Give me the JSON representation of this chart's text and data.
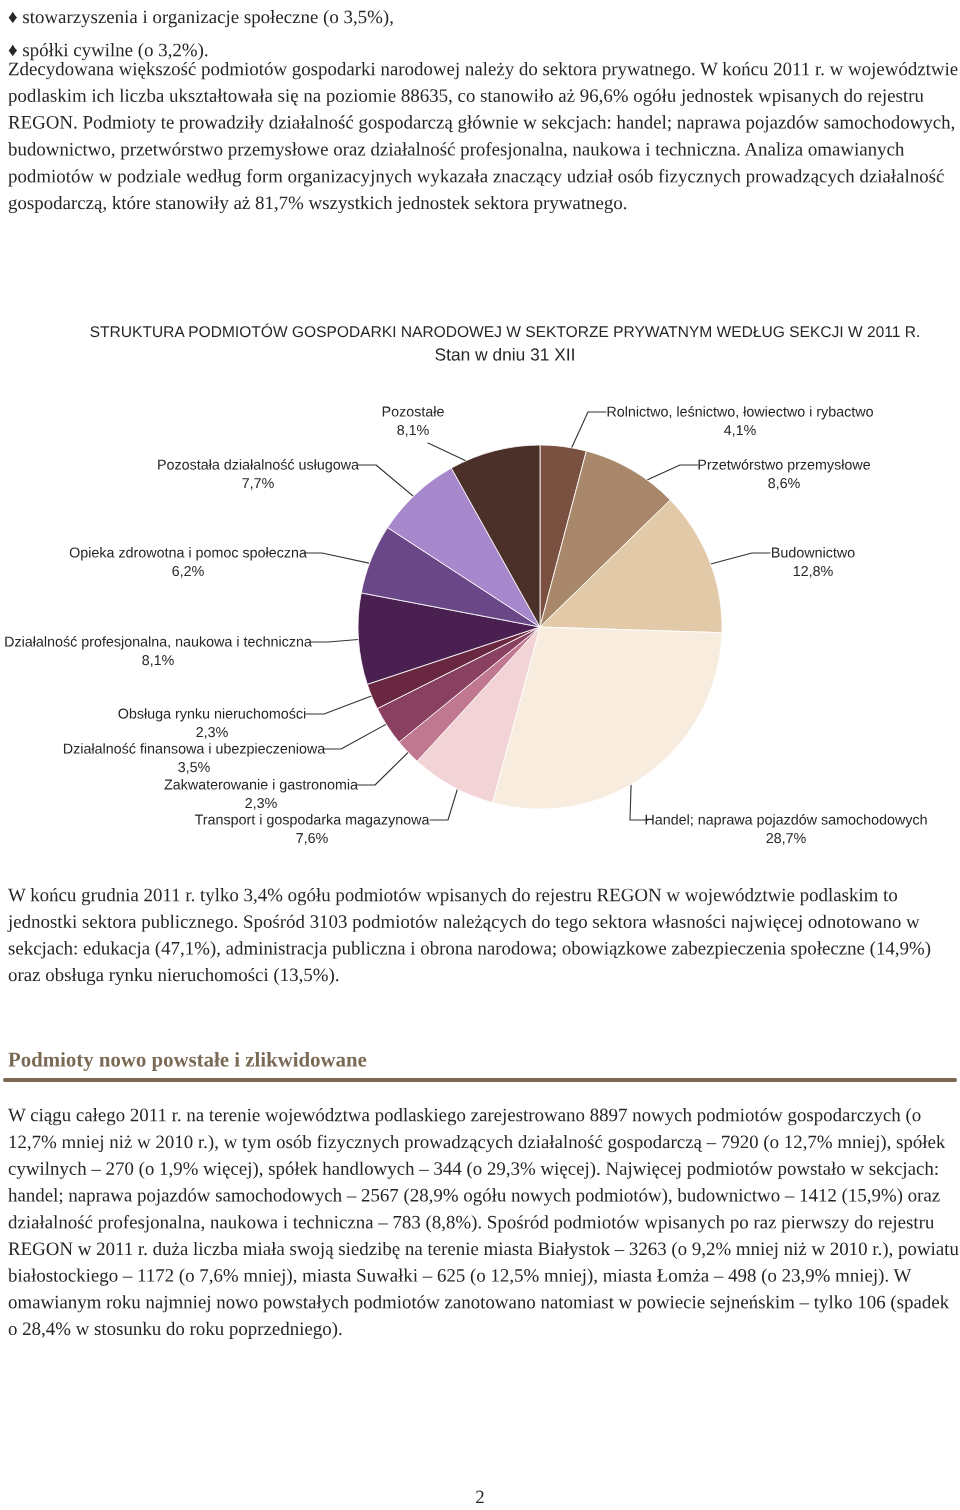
{
  "chart_data": {
    "type": "pie",
    "title": "STRUKTURA PODMIOTÓW GOSPODARKI NARODOWEJ W SEKTORZE PRYWATNYM WEDŁUG SEKCJI W 2011 R.",
    "subtitle": "Stan w dniu 31 XII",
    "categories": [
      "Rolnictwo, leśnictwo, łowiectwo i rybactwo",
      "Przetwórstwo przemysłowe",
      "Budownictwo",
      "Handel; naprawa pojazdów samochodowych",
      "Transport i gospodarka magazynowa",
      "Zakwaterowanie i gastronomia",
      "Działalność finansowa i ubezpieczeniowa",
      "Obsługa rynku nieruchomości",
      "Działalność profesjonalna, naukowa i techniczna",
      "Opieka zdrowotna i pomoc społeczna",
      "Pozostała działalność usługowa",
      "Pozostałe"
    ],
    "values": [
      4.1,
      8.6,
      12.8,
      28.7,
      7.6,
      2.3,
      3.5,
      2.3,
      8.1,
      6.2,
      7.7,
      8.1
    ],
    "value_labels": [
      "4,1%",
      "8,6%",
      "12,8%",
      "28,7%",
      "7,6%",
      "2,3%",
      "3,5%",
      "2,3%",
      "8,1%",
      "6,2%",
      "7,7%",
      "8,1%"
    ],
    "colors": [
      "#7a5040",
      "#a8876a",
      "#e2c9a8",
      "#f8ecde",
      "#f2d4d6",
      "#c07890",
      "#8a4060",
      "#6a2840",
      "#4a2050",
      "#6a4888",
      "#a888cc",
      "#4a3028"
    ],
    "annotations": [
      "♦ stowarzyszenia i organizacje społeczne (o 3,5%),",
      "♦ spółki cywilne (o 3,2%).",
      "Zdecydowana większość podmiotów gospodarki narodowej należy do sektora prywatnego. W końcu 2011 r. w województwie podlaskim ich liczba ukształtowała się na poziomie 88635, co stanowiło aż 96,6% ogółu jednostek wpisanych do rejestru REGON. Podmioty te prowadziły działalność gospodarczą głównie w sekcjach: handel; naprawa pojazdów samochodowych, budownictwo, przetwórstwo przemysłowe oraz działalność profesjonalna, naukowa i techniczna. Analiza omawianych podmiotów w podziale według form organizacyjnych wykazała znaczący udział osób fizycznych prowadzących działalność gospodarczą, które stanowiły aż 81,7% wszystkich jednostek sektora prywatnego.",
      "W końcu grudnia 2011 r. tylko 3,4% ogółu podmiotów wpisanych do rejestru REGON w województwie podlaskim to jednostki sektora publicznego. Spośród 3103 podmiotów należących do tego sektora własności najwięcej odnotowano w sekcjach: edukacja (47,1%), administracja publiczna i obrona narodowa; obowiązkowe zabezpieczenia społeczne (14,9%) oraz obsługa rynku nieruchomości (13,5%).",
      "Podmioty nowo powstałe i zlikwidowane",
      "W ciągu całego 2011 r. na terenie województwa podlaskiego zarejestrowano 8897 nowych podmiotów gospodarczych (o 12,7% mniej niż w 2010 r.), w tym osób fizycznych prowadzących działalność gospodarczą – 7920 (o 12,7% mniej), spółek cywilnych – 270 (o 1,9% więcej), spółek handlowych – 344 (o 29,3% więcej). Najwięcej podmiotów powstało w sekcjach: handel; naprawa pojazdów samochodowych – 2567 (28,9% ogółu nowych podmiotów), budownictwo – 1412 (15,9%) oraz działalność profesjonalna, naukowa i techniczna – 783 (8,8%). Spośród podmiotów wpisanych po raz pierwszy do rejestru REGON w 2011 r. duża liczba miała swoją siedzibę na terenie miasta Białystok – 3263 (o 9,2% mniej niż w 2010 r.), powiatu białostockiego – 1172 (o 7,6% mniej), miasta Suwałki – 625 (o 12,5% mniej), miasta Łomża – 498 (o 23,9% mniej). W omawianym roku najmniej nowo powstałych podmiotów zanotowano natomiast w powiecie sejneńskim – tylko 106 (spadek o 28,4% w stosunku do roku poprzedniego).",
      "2"
    ]
  }
}
